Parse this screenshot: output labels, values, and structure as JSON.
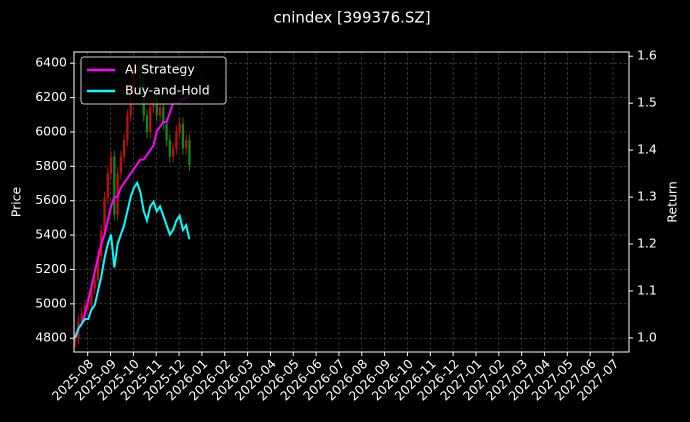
{
  "chart_data": {
    "type": "candlestick",
    "title": "cnindex [399376.SZ]",
    "ylabel": "Price",
    "y2label": "Return",
    "x": [
      -0.55,
      -0.407,
      -0.264,
      -0.121,
      0.022,
      0.165,
      0.308,
      0.451,
      0.594,
      0.737,
      0.88,
      1.023,
      1.166,
      1.309,
      1.452,
      1.595,
      1.738,
      1.881,
      2.024,
      2.167,
      2.31,
      2.453,
      2.596,
      2.739,
      2.882,
      3.025,
      3.168,
      3.311,
      3.454,
      3.597,
      3.74,
      3.883,
      4.026,
      4.169,
      4.312,
      4.455
    ],
    "open": [
      4780,
      4800,
      4896,
      4944,
      4992,
      4992,
      5088,
      5136,
      5280,
      5424,
      5616,
      5760,
      5856,
      5520,
      5760,
      5856,
      5952,
      6096,
      6240,
      6336,
      6384,
      6288,
      6096,
      6000,
      6144,
      6192,
      6096,
      6144,
      6048,
      5952,
      5856,
      5904,
      6000,
      6048,
      5904,
      5952
    ],
    "high": [
      4835,
      4931,
      4979,
      5027,
      5027,
      5123,
      5171,
      5315,
      5459,
      5651,
      5795,
      5891,
      5891,
      5795,
      5891,
      5987,
      6131,
      6275,
      6371,
      6419,
      6419,
      6323,
      6131,
      6179,
      6227,
      6227,
      6179,
      6179,
      6083,
      5987,
      5939,
      6035,
      6083,
      6083,
      5987,
      5987
    ],
    "low": [
      4745,
      4765,
      4861,
      4909,
      4957,
      4957,
      5053,
      5101,
      5245,
      5389,
      5581,
      5725,
      5485,
      5485,
      5725,
      5821,
      5917,
      6061,
      6205,
      6301,
      6253,
      6061,
      5965,
      5965,
      6109,
      6061,
      6061,
      6013,
      5917,
      5821,
      5821,
      5869,
      5965,
      5869,
      5869,
      5773
    ],
    "close": [
      4800,
      4896,
      4944,
      4992,
      4992,
      5088,
      5136,
      5280,
      5424,
      5616,
      5760,
      5856,
      5520,
      5760,
      5856,
      5952,
      6096,
      6240,
      6336,
      6384,
      6288,
      6096,
      6000,
      6144,
      6192,
      6096,
      6144,
      6048,
      5952,
      5856,
      5904,
      6000,
      6048,
      5904,
      5952,
      5808
    ],
    "up_color": "#c0100c",
    "down_color": "#0f8a0f",
    "series": [
      {
        "name": "AI Strategy",
        "color": "#ff00ff",
        "axis": "y2",
        "values": [
          1.0,
          1.02,
          1.03,
          1.05,
          1.08,
          1.11,
          1.14,
          1.17,
          1.2,
          1.22,
          1.25,
          1.28,
          1.3,
          1.3,
          1.32,
          1.33,
          1.34,
          1.35,
          1.36,
          1.37,
          1.38,
          1.38,
          1.39,
          1.4,
          1.41,
          1.44,
          1.45,
          1.46,
          1.46,
          1.48,
          1.5,
          1.5,
          1.5,
          1.51,
          1.51,
          1.52
        ]
      },
      {
        "name": "Buy-and-Hold",
        "color": "#00ffff",
        "axis": "y2",
        "values": [
          1.0,
          1.02,
          1.03,
          1.04,
          1.04,
          1.06,
          1.07,
          1.1,
          1.13,
          1.17,
          1.2,
          1.22,
          1.15,
          1.2,
          1.22,
          1.24,
          1.27,
          1.3,
          1.32,
          1.33,
          1.31,
          1.27,
          1.25,
          1.28,
          1.29,
          1.27,
          1.28,
          1.26,
          1.24,
          1.22,
          1.23,
          1.25,
          1.26,
          1.23,
          1.24,
          1.21
        ]
      }
    ],
    "xlim": [
      -0.6,
      23.7
    ],
    "xticks": [
      {
        "value": 0,
        "label": "2025-08"
      },
      {
        "value": 1,
        "label": "2025-09"
      },
      {
        "value": 2,
        "label": "2025-10"
      },
      {
        "value": 3,
        "label": "2025-11"
      },
      {
        "value": 4,
        "label": "2025-12"
      },
      {
        "value": 5,
        "label": "2026-01"
      },
      {
        "value": 6,
        "label": "2026-02"
      },
      {
        "value": 7,
        "label": "2026-03"
      },
      {
        "value": 8,
        "label": "2026-04"
      },
      {
        "value": 9,
        "label": "2026-05"
      },
      {
        "value": 10,
        "label": "2026-06"
      },
      {
        "value": 11,
        "label": "2026-07"
      },
      {
        "value": 12,
        "label": "2026-08"
      },
      {
        "value": 13,
        "label": "2026-09"
      },
      {
        "value": 14,
        "label": "2026-10"
      },
      {
        "value": 15,
        "label": "2026-11"
      },
      {
        "value": 16,
        "label": "2026-12"
      },
      {
        "value": 17,
        "label": "2027-01"
      },
      {
        "value": 18,
        "label": "2027-02"
      },
      {
        "value": 19,
        "label": "2027-03"
      },
      {
        "value": 20,
        "label": "2027-04"
      },
      {
        "value": 21,
        "label": "2027-05"
      },
      {
        "value": 22,
        "label": "2027-06"
      },
      {
        "value": 23,
        "label": "2027-07"
      }
    ],
    "ylim": [
      4720,
      6465
    ],
    "yticks": [
      4800,
      5000,
      5200,
      5400,
      5600,
      5800,
      6000,
      6200,
      6400
    ],
    "y2lim": [
      0.97,
      1.609
    ],
    "y2ticks": [
      {
        "value": 1,
        "label": "1.0"
      },
      1.1,
      1.2,
      1.3,
      1.4,
      1.5,
      1.6
    ],
    "grid": true,
    "legend": "upper left"
  }
}
